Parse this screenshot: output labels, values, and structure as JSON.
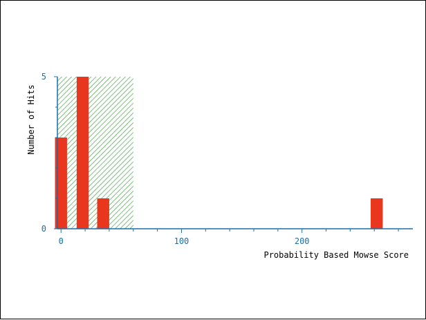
{
  "chart_data": {
    "type": "bar",
    "title": "",
    "xlabel": "Probability Based Mowse Score",
    "ylabel": "Number of Hits",
    "xlim": [
      -3,
      292
    ],
    "ylim": [
      0,
      5
    ],
    "x_ticks": [
      0,
      100,
      200
    ],
    "y_ticks": [
      0,
      5
    ],
    "bin_width": 10,
    "bars": [
      {
        "x": 0,
        "value": 3
      },
      {
        "x": 18,
        "value": 5
      },
      {
        "x": 35,
        "value": 1
      },
      {
        "x": 262,
        "value": 1
      }
    ],
    "significance_region": {
      "x_range": [
        -3,
        60
      ],
      "pattern": "diagonal-hatch"
    },
    "grid": false,
    "colors": {
      "bars": "#e8361f",
      "axes": "#1a6fa5",
      "tick_labels": "#1a6fa5",
      "region": "#3a9a3a",
      "label_text": "#000000"
    }
  }
}
